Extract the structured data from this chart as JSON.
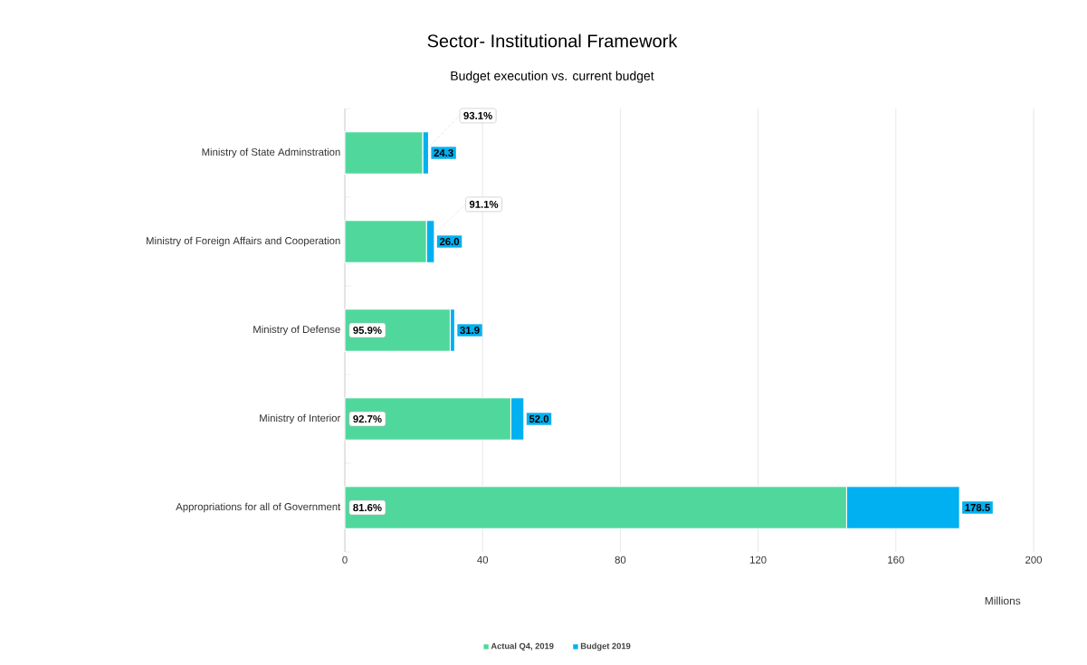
{
  "chart_data": {
    "type": "bar",
    "orientation": "horizontal",
    "stacked": true,
    "title": "Sector- Institutional Framework",
    "subtitle": "Budget execution vs. current budget",
    "xlabel": "Millions",
    "categories": [
      "Ministry of State Adminstration",
      "Ministry of Foreign Affairs and Cooperation",
      "Ministry of Defense",
      "Ministry of Interior",
      "Appropriations for all of Government"
    ],
    "series": [
      {
        "name": "Actual Q4, 2019",
        "color": "#50d89c",
        "values": [
          22.6,
          23.7,
          30.6,
          48.2,
          145.7
        ]
      },
      {
        "name": "Budget 2019",
        "color": "#00b0f0",
        "values": [
          1.7,
          2.3,
          1.3,
          3.8,
          32.8
        ]
      }
    ],
    "totals": [
      "24.3",
      "26.0",
      "31.9",
      "52.0",
      "178.5"
    ],
    "annotations": [
      {
        "text": "93.1%",
        "x": 22.6,
        "y": "Ministry of State Adminstration"
      },
      {
        "text": "91.1%",
        "x": 23.7,
        "y": "Ministry of Foreign Affairs and Cooperation"
      },
      {
        "text": "95.9%",
        "y": "Ministry of Defense"
      },
      {
        "text": "92.7%",
        "y": "Ministry of Interior"
      },
      {
        "text": "81.6%",
        "y": "Appropriations for all of Government"
      }
    ],
    "xlim": [
      0,
      200
    ],
    "xticks": [
      0,
      40,
      80,
      120,
      160,
      200
    ],
    "grid": "x",
    "legend": "bottom"
  }
}
